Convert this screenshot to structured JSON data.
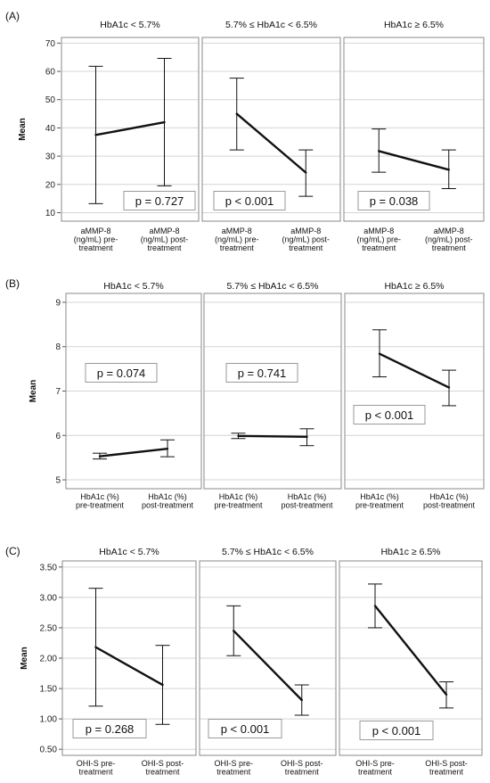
{
  "figures": [
    {
      "label": "(A)",
      "ylabel": "Mean",
      "yticks": [
        10,
        20,
        30,
        40,
        50,
        60,
        70
      ],
      "ytick_labels": [
        "10",
        "20",
        "30",
        "40",
        "50",
        "60",
        "70"
      ],
      "ylim": [
        7,
        72
      ],
      "panels": [
        {
          "title": "HbA1c < 5.7%",
          "x_labels": [
            [
              "aMMP-8",
              "(ng/mL) pre-",
              "treatment"
            ],
            [
              "aMMP-8",
              "(ng/mL) post-",
              "treatment"
            ]
          ],
          "means": [
            37.5,
            42.0
          ],
          "err_low": [
            13.2,
            19.5
          ],
          "err_high": [
            61.8,
            64.6
          ],
          "p_text": "p = 0.727"
        },
        {
          "title": "5.7% ≤ HbA1c < 6.5%",
          "x_labels": [
            [
              "aMMP-8",
              "(ng/mL) pre-",
              "treatment"
            ],
            [
              "aMMP-8",
              "(ng/mL) post-",
              "treatment"
            ]
          ],
          "means": [
            45.0,
            24.2
          ],
          "err_low": [
            32.2,
            15.8
          ],
          "err_high": [
            57.6,
            32.2
          ],
          "p_text": "p < 0.001"
        },
        {
          "title": "HbA1c ≥ 6.5%",
          "x_labels": [
            [
              "aMMP-8",
              "(ng/mL) pre-",
              "treatment"
            ],
            [
              "aMMP-8",
              "(ng/mL) post-",
              "treatment"
            ]
          ],
          "means": [
            31.8,
            25.2
          ],
          "err_low": [
            24.3,
            18.5
          ],
          "err_high": [
            39.6,
            32.2
          ],
          "p_text": "p = 0.038"
        }
      ]
    },
    {
      "label": "(B)",
      "ylabel": "Mean",
      "yticks": [
        5,
        6,
        7,
        8,
        9
      ],
      "ytick_labels": [
        "5",
        "6",
        "7",
        "8",
        "9"
      ],
      "ylim": [
        4.8,
        9.2
      ],
      "panels": [
        {
          "title": "HbA1c < 5.7%",
          "x_labels": [
            [
              "HbA1c (%)",
              "pre-treatment"
            ],
            [
              "HbA1c (%)",
              "post-treatment"
            ]
          ],
          "means": [
            5.53,
            5.7
          ],
          "err_low": [
            5.47,
            5.52
          ],
          "err_high": [
            5.6,
            5.9
          ],
          "p_text": "p = 0.074"
        },
        {
          "title": "5.7% ≤ HbA1c < 6.5%",
          "x_labels": [
            [
              "HbA1c (%)",
              "pre-treatment"
            ],
            [
              "HbA1c (%)",
              "post-treatment"
            ]
          ],
          "means": [
            5.99,
            5.97
          ],
          "err_low": [
            5.93,
            5.77
          ],
          "err_high": [
            6.05,
            6.15
          ],
          "p_text": "p = 0.741"
        },
        {
          "title": "HbA1c ≥ 6.5%",
          "x_labels": [
            [
              "HbA1c (%)",
              "pre-treatment"
            ],
            [
              "HbA1c (%)",
              "post-treatment"
            ]
          ],
          "means": [
            7.84,
            7.08
          ],
          "err_low": [
            7.32,
            6.67
          ],
          "err_high": [
            8.38,
            7.47
          ],
          "p_text": "p < 0.001"
        }
      ]
    },
    {
      "label": "(C)",
      "ylabel": "Mean",
      "yticks": [
        0.5,
        1.0,
        1.5,
        2.0,
        2.5,
        3.0,
        3.5
      ],
      "ytick_labels": [
        "0.50",
        "1.00",
        "1.50",
        "2.00",
        "2.50",
        "3.00",
        "3.50"
      ],
      "ylim": [
        0.4,
        3.6
      ],
      "panels": [
        {
          "title": "HbA1c < 5.7%",
          "x_labels": [
            [
              "OHI-S pre-",
              "treatment"
            ],
            [
              "OHI-S post-",
              "treatment"
            ]
          ],
          "means": [
            2.18,
            1.56
          ],
          "err_low": [
            1.21,
            0.91
          ],
          "err_high": [
            3.15,
            2.21
          ],
          "p_text": "p = 0.268"
        },
        {
          "title": "5.7% ≤ HbA1c < 6.5%",
          "x_labels": [
            [
              "OHI-S pre-",
              "treatment"
            ],
            [
              "OHI-S post-",
              "treatment"
            ]
          ],
          "means": [
            2.45,
            1.31
          ],
          "err_low": [
            2.04,
            1.06
          ],
          "err_high": [
            2.86,
            1.56
          ],
          "p_text": "p < 0.001"
        },
        {
          "title": "HbA1c ≥ 6.5%",
          "x_labels": [
            [
              "OHI-S pre-",
              "treatment"
            ],
            [
              "OHI-S post-",
              "treatment"
            ]
          ],
          "means": [
            2.86,
            1.4
          ],
          "err_low": [
            2.5,
            1.18
          ],
          "err_high": [
            3.22,
            1.61
          ],
          "p_text": "p < 0.001"
        }
      ]
    }
  ],
  "chart_data": [
    {
      "type": "line",
      "title": "(A)",
      "ylabel": "Mean",
      "ylim": [
        7,
        72
      ],
      "grid": true,
      "panels": [
        {
          "title": "HbA1c < 5.7%",
          "categories": [
            "aMMP-8 (ng/mL) pre-treatment",
            "aMMP-8 (ng/mL) post-treatment"
          ],
          "values": [
            37.5,
            42.0
          ],
          "error_low": [
            13.2,
            19.5
          ],
          "error_high": [
            61.8,
            64.6
          ],
          "annotation": "p = 0.727"
        },
        {
          "title": "5.7% ≤ HbA1c < 6.5%",
          "categories": [
            "aMMP-8 (ng/mL) pre-treatment",
            "aMMP-8 (ng/mL) post-treatment"
          ],
          "values": [
            45.0,
            24.2
          ],
          "error_low": [
            32.2,
            15.8
          ],
          "error_high": [
            57.6,
            32.2
          ],
          "annotation": "p < 0.001"
        },
        {
          "title": "HbA1c ≥ 6.5%",
          "categories": [
            "aMMP-8 (ng/mL) pre-treatment",
            "aMMP-8 (ng/mL) post-treatment"
          ],
          "values": [
            31.8,
            25.2
          ],
          "error_low": [
            24.3,
            18.5
          ],
          "error_high": [
            39.6,
            32.2
          ],
          "annotation": "p = 0.038"
        }
      ]
    },
    {
      "type": "line",
      "title": "(B)",
      "ylabel": "Mean",
      "ylim": [
        4.8,
        9.2
      ],
      "grid": true,
      "panels": [
        {
          "title": "HbA1c < 5.7%",
          "categories": [
            "HbA1c (%) pre-treatment",
            "HbA1c (%) post-treatment"
          ],
          "values": [
            5.53,
            5.7
          ],
          "error_low": [
            5.47,
            5.52
          ],
          "error_high": [
            5.6,
            5.9
          ],
          "annotation": "p = 0.074"
        },
        {
          "title": "5.7% ≤ HbA1c < 6.5%",
          "categories": [
            "HbA1c (%) pre-treatment",
            "HbA1c (%) post-treatment"
          ],
          "values": [
            5.99,
            5.97
          ],
          "error_low": [
            5.93,
            5.77
          ],
          "error_high": [
            6.05,
            6.15
          ],
          "annotation": "p = 0.741"
        },
        {
          "title": "HbA1c ≥ 6.5%",
          "categories": [
            "HbA1c (%) pre-treatment",
            "HbA1c (%) post-treatment"
          ],
          "values": [
            7.84,
            7.08
          ],
          "error_low": [
            7.32,
            6.67
          ],
          "error_high": [
            8.38,
            7.47
          ],
          "annotation": "p < 0.001"
        }
      ]
    },
    {
      "type": "line",
      "title": "(C)",
      "ylabel": "Mean",
      "ylim": [
        0.4,
        3.6
      ],
      "grid": true,
      "panels": [
        {
          "title": "HbA1c < 5.7%",
          "categories": [
            "OHI-S pre-treatment",
            "OHI-S post-treatment"
          ],
          "values": [
            2.18,
            1.56
          ],
          "error_low": [
            1.21,
            0.91
          ],
          "error_high": [
            3.15,
            2.21
          ],
          "annotation": "p = 0.268"
        },
        {
          "title": "5.7% ≤ HbA1c < 6.5%",
          "categories": [
            "OHI-S pre-treatment",
            "OHI-S post-treatment"
          ],
          "values": [
            2.45,
            1.31
          ],
          "error_low": [
            2.04,
            1.06
          ],
          "error_high": [
            2.86,
            1.56
          ],
          "annotation": "p < 0.001"
        },
        {
          "title": "HbA1c ≥ 6.5%",
          "categories": [
            "OHI-S pre-treatment",
            "OHI-S post-treatment"
          ],
          "values": [
            2.86,
            1.4
          ],
          "error_low": [
            2.5,
            1.18
          ],
          "error_high": [
            3.22,
            1.61
          ],
          "annotation": "p < 0.001"
        }
      ]
    }
  ]
}
